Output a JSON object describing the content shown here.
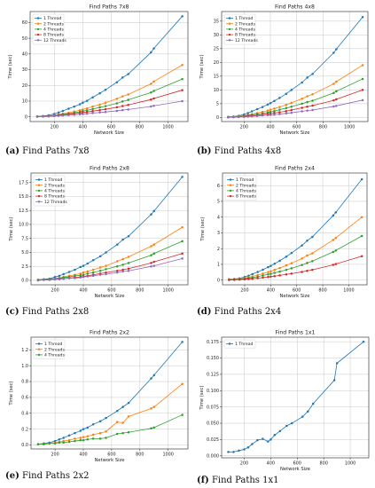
{
  "figure": {
    "captions": [
      {
        "letter": "(a)",
        "text": "Find Paths 7x8"
      },
      {
        "letter": "(b)",
        "text": "Find Paths 4x8"
      },
      {
        "letter": "(c)",
        "text": "Find Paths 2x8"
      },
      {
        "letter": "(d)",
        "text": "Find Paths 2x4"
      },
      {
        "letter": "(e)",
        "text": "Find Paths 2x2"
      },
      {
        "letter": "(f)",
        "text": "Find Paths 1x1"
      }
    ]
  },
  "colors": {
    "1 Thread": "#1f77b4",
    "2 Threads": "#ff7f0e",
    "4 Threads": "#2ca02c",
    "8 Threads": "#d62728",
    "12 Threads": "#9467bd"
  },
  "chart_data": [
    {
      "type": "line",
      "title": "Find Paths 7x8",
      "xlabel": "Network Size",
      "ylabel": "Time (sec)",
      "xlim": [
        30,
        1140
      ],
      "ylim": [
        -3,
        67
      ],
      "xticks": [
        200,
        400,
        600,
        800,
        1000
      ],
      "yticks": [
        0,
        10,
        20,
        30,
        40,
        50,
        60
      ],
      "ytick_labels": [
        "0",
        "10",
        "20",
        "30",
        "40",
        "50",
        "60"
      ],
      "grid": true,
      "legend": "upper-left",
      "x": [
        80,
        120,
        160,
        200,
        230,
        260,
        300,
        340,
        380,
        400,
        430,
        470,
        520,
        560,
        640,
        680,
        720,
        880,
        900,
        1100
      ],
      "series": [
        {
          "name": "1 Thread",
          "values": [
            0.3,
            0.5,
            1.0,
            1.9,
            2.8,
            3.8,
            5.2,
            6.5,
            8.0,
            9.0,
            10.2,
            12.4,
            15.0,
            17.2,
            22.0,
            25.0,
            27.2,
            41.0,
            43.5,
            64.0
          ]
        },
        {
          "name": "2 Threads",
          "values": [
            0.2,
            0.3,
            0.6,
            1.0,
            1.5,
            2.0,
            2.6,
            3.4,
            4.2,
            4.7,
            5.4,
            6.5,
            7.8,
            9.0,
            11.5,
            13.0,
            14.2,
            21.0,
            22.5,
            33.0
          ]
        },
        {
          "name": "4 Threads",
          "values": [
            0.2,
            0.3,
            0.5,
            0.8,
            1.2,
            1.6,
            2.0,
            2.6,
            3.2,
            3.6,
            4.1,
            5.0,
            6.0,
            6.8,
            8.6,
            9.8,
            10.8,
            15.5,
            16.5,
            24.0
          ]
        },
        {
          "name": "8 Threads",
          "values": [
            0.1,
            0.2,
            0.4,
            0.6,
            0.9,
            1.2,
            1.5,
            2.0,
            2.4,
            2.7,
            3.1,
            3.6,
            4.3,
            4.8,
            6.1,
            6.9,
            7.6,
            11.0,
            11.7,
            17.0
          ]
        },
        {
          "name": "12 Threads",
          "values": [
            0.1,
            0.2,
            0.3,
            0.5,
            0.7,
            0.9,
            1.1,
            1.3,
            1.6,
            1.8,
            2.0,
            2.4,
            2.8,
            3.1,
            3.8,
            4.3,
            4.7,
            6.6,
            7.0,
            10.0
          ]
        }
      ]
    },
    {
      "type": "line",
      "title": "Find Paths 4x8",
      "xlabel": "Network Size",
      "ylabel": "Time (sec)",
      "xlim": [
        30,
        1140
      ],
      "ylim": [
        -1.5,
        38.5
      ],
      "xticks": [
        200,
        400,
        600,
        800,
        1000
      ],
      "yticks": [
        0,
        5,
        10,
        15,
        20,
        25,
        30,
        35
      ],
      "ytick_labels": [
        "0",
        "5",
        "10",
        "15",
        "20",
        "25",
        "30",
        "35"
      ],
      "grid": true,
      "legend": "upper-left",
      "x": [
        80,
        120,
        160,
        200,
        230,
        260,
        300,
        340,
        380,
        400,
        430,
        470,
        520,
        560,
        640,
        680,
        720,
        880,
        900,
        1100
      ],
      "series": [
        {
          "name": "1 Thread",
          "values": [
            0.2,
            0.3,
            0.6,
            1.1,
            1.6,
            2.2,
            3.0,
            3.8,
            4.7,
            5.2,
            6.0,
            7.1,
            8.6,
            10.0,
            12.7,
            14.5,
            15.8,
            23.5,
            24.8,
            36.5
          ]
        },
        {
          "name": "2 Threads",
          "values": [
            0.1,
            0.2,
            0.4,
            0.6,
            0.9,
            1.2,
            1.6,
            2.0,
            2.5,
            2.8,
            3.2,
            3.8,
            4.6,
            5.3,
            6.8,
            7.7,
            8.4,
            12.2,
            13.0,
            19.0
          ]
        },
        {
          "name": "4 Threads",
          "values": [
            0.1,
            0.2,
            0.3,
            0.5,
            0.7,
            0.9,
            1.2,
            1.5,
            1.8,
            2.0,
            2.3,
            2.8,
            3.4,
            3.9,
            5.0,
            5.6,
            6.1,
            8.9,
            9.5,
            14.0
          ]
        },
        {
          "name": "8 Threads",
          "values": [
            0.1,
            0.1,
            0.2,
            0.4,
            0.5,
            0.6,
            0.8,
            1.0,
            1.3,
            1.4,
            1.6,
            1.9,
            2.3,
            2.7,
            3.5,
            3.9,
            4.3,
            6.2,
            6.6,
            10.0
          ]
        },
        {
          "name": "12 Threads",
          "values": [
            0.0,
            0.1,
            0.2,
            0.2,
            0.3,
            0.4,
            0.5,
            0.7,
            0.8,
            0.9,
            1.0,
            1.2,
            1.5,
            1.7,
            2.2,
            2.5,
            2.7,
            4.0,
            4.2,
            6.3
          ]
        }
      ]
    },
    {
      "type": "line",
      "title": "Find Paths 2x8",
      "xlabel": "Network Size",
      "ylabel": "Time (sec)",
      "xlim": [
        30,
        1140
      ],
      "ylim": [
        -0.8,
        19.2
      ],
      "xticks": [
        200,
        400,
        600,
        800,
        1000
      ],
      "yticks": [
        0,
        2.5,
        5.0,
        7.5,
        10.0,
        12.5,
        15.0,
        17.5
      ],
      "ytick_labels": [
        "0.0",
        "2.5",
        "5.0",
        "7.5",
        "10.0",
        "12.5",
        "15.0",
        "17.5"
      ],
      "grid": true,
      "legend": "upper-left",
      "x": [
        80,
        120,
        160,
        200,
        230,
        260,
        300,
        340,
        380,
        400,
        430,
        470,
        520,
        560,
        640,
        680,
        720,
        880,
        900,
        1100
      ],
      "series": [
        {
          "name": "1 Thread",
          "values": [
            0.1,
            0.2,
            0.3,
            0.6,
            0.8,
            1.1,
            1.5,
            1.9,
            2.4,
            2.6,
            3.0,
            3.6,
            4.3,
            5.0,
            6.4,
            7.3,
            7.9,
            11.8,
            12.4,
            18.5
          ]
        },
        {
          "name": "2 Threads",
          "values": [
            0.1,
            0.1,
            0.2,
            0.3,
            0.4,
            0.6,
            0.8,
            1.0,
            1.2,
            1.4,
            1.6,
            1.9,
            2.3,
            2.6,
            3.4,
            3.8,
            4.2,
            6.1,
            6.4,
            9.5
          ]
        },
        {
          "name": "4 Threads",
          "values": [
            0.1,
            0.1,
            0.2,
            0.3,
            0.4,
            0.5,
            0.6,
            0.8,
            0.9,
            1.0,
            1.2,
            1.4,
            1.7,
            2.0,
            2.5,
            2.8,
            3.1,
            4.5,
            4.8,
            7.0
          ]
        },
        {
          "name": "8 Threads",
          "values": [
            0.0,
            0.1,
            0.1,
            0.2,
            0.3,
            0.3,
            0.4,
            0.5,
            0.6,
            0.7,
            0.8,
            1.0,
            1.2,
            1.4,
            1.7,
            1.9,
            2.1,
            3.1,
            3.3,
            4.8
          ]
        },
        {
          "name": "12 Threads",
          "values": [
            0.0,
            0.1,
            0.1,
            0.2,
            0.2,
            0.3,
            0.4,
            0.4,
            0.5,
            0.6,
            0.7,
            0.8,
            1.0,
            1.1,
            1.4,
            1.6,
            1.7,
            2.5,
            2.6,
            3.9
          ]
        }
      ]
    },
    {
      "type": "line",
      "title": "Find Paths 2x4",
      "xlabel": "Network Size",
      "ylabel": "Time (sec)",
      "xlim": [
        30,
        1140
      ],
      "ylim": [
        -0.3,
        6.8
      ],
      "xticks": [
        200,
        400,
        600,
        800,
        1000
      ],
      "yticks": [
        0,
        1,
        2,
        3,
        4,
        5,
        6
      ],
      "ytick_labels": [
        "0",
        "1",
        "2",
        "3",
        "4",
        "5",
        "6"
      ],
      "grid": true,
      "legend": "upper-left",
      "x": [
        80,
        120,
        160,
        200,
        230,
        260,
        300,
        340,
        380,
        400,
        430,
        470,
        520,
        560,
        640,
        680,
        720,
        880,
        900,
        1100
      ],
      "series": [
        {
          "name": "1 Thread",
          "values": [
            0.05,
            0.07,
            0.11,
            0.2,
            0.28,
            0.38,
            0.52,
            0.66,
            0.82,
            0.9,
            1.04,
            1.23,
            1.49,
            1.72,
            2.2,
            2.5,
            2.74,
            4.1,
            4.3,
            6.4
          ]
        },
        {
          "name": "2 Threads",
          "values": [
            0.03,
            0.05,
            0.07,
            0.12,
            0.17,
            0.23,
            0.32,
            0.41,
            0.51,
            0.56,
            0.65,
            0.77,
            0.93,
            1.07,
            1.37,
            1.56,
            1.7,
            2.55,
            2.68,
            4.0
          ]
        },
        {
          "name": "4 Threads",
          "values": [
            0.02,
            0.03,
            0.05,
            0.09,
            0.12,
            0.16,
            0.22,
            0.29,
            0.36,
            0.4,
            0.46,
            0.54,
            0.65,
            0.75,
            0.96,
            1.09,
            1.2,
            1.79,
            1.88,
            2.8
          ]
        },
        {
          "name": "8 Threads",
          "values": [
            0.01,
            0.02,
            0.03,
            0.05,
            0.07,
            0.09,
            0.12,
            0.16,
            0.2,
            0.22,
            0.25,
            0.3,
            0.36,
            0.41,
            0.52,
            0.59,
            0.65,
            0.97,
            1.02,
            1.52
          ]
        }
      ]
    },
    {
      "type": "line",
      "title": "Find Paths 2x2",
      "xlabel": "Network Size",
      "ylabel": "Time (sec)",
      "xlim": [
        30,
        1140
      ],
      "ylim": [
        -0.05,
        1.36
      ],
      "xticks": [
        200,
        400,
        600,
        800,
        1000
      ],
      "yticks": [
        0,
        0.2,
        0.4,
        0.6,
        0.8,
        1.0,
        1.2
      ],
      "ytick_labels": [
        "0.0",
        "0.2",
        "0.4",
        "0.6",
        "0.8",
        "1.0",
        "1.2"
      ],
      "grid": true,
      "legend": "upper-left",
      "x": [
        80,
        120,
        160,
        200,
        230,
        260,
        300,
        340,
        380,
        400,
        430,
        470,
        520,
        560,
        640,
        680,
        720,
        880,
        900,
        1100
      ],
      "series": [
        {
          "name": "1 Thread",
          "values": [
            0.01,
            0.02,
            0.03,
            0.05,
            0.07,
            0.09,
            0.12,
            0.15,
            0.18,
            0.2,
            0.22,
            0.26,
            0.3,
            0.34,
            0.43,
            0.48,
            0.53,
            0.84,
            0.88,
            1.3
          ]
        },
        {
          "name": "2 Threads",
          "values": [
            0.01,
            0.01,
            0.02,
            0.03,
            0.04,
            0.05,
            0.06,
            0.08,
            0.09,
            0.1,
            0.11,
            0.13,
            0.15,
            0.17,
            0.29,
            0.28,
            0.36,
            0.46,
            0.48,
            0.77
          ]
        },
        {
          "name": "4 Threads",
          "values": [
            0.01,
            0.01,
            0.02,
            0.02,
            0.03,
            0.03,
            0.04,
            0.05,
            0.06,
            0.06,
            0.07,
            0.08,
            0.08,
            0.09,
            0.14,
            0.15,
            0.16,
            0.21,
            0.22,
            0.38
          ]
        }
      ]
    },
    {
      "type": "line",
      "title": "Find Paths 1x1",
      "xlabel": "Network Size",
      "ylabel": "Time (sec)",
      "xlim": [
        30,
        1140
      ],
      "ylim": [
        -0.003,
        0.182
      ],
      "xticks": [
        200,
        400,
        600,
        800,
        1000
      ],
      "yticks": [
        0,
        0.025,
        0.05,
        0.075,
        0.1,
        0.125,
        0.15,
        0.175
      ],
      "ytick_labels": [
        "0.000",
        "0.025",
        "0.050",
        "0.075",
        "0.100",
        "0.125",
        "0.150",
        "0.175"
      ],
      "grid": true,
      "legend": "upper-left",
      "x": [
        80,
        120,
        160,
        200,
        230,
        260,
        300,
        340,
        380,
        400,
        430,
        470,
        520,
        560,
        640,
        680,
        720,
        880,
        900,
        1100
      ],
      "series": [
        {
          "name": "1 Thread",
          "values": [
            0.006,
            0.006,
            0.008,
            0.01,
            0.013,
            0.018,
            0.024,
            0.026,
            0.022,
            0.025,
            0.032,
            0.038,
            0.046,
            0.05,
            0.06,
            0.068,
            0.08,
            0.116,
            0.142,
            0.175
          ]
        }
      ]
    }
  ]
}
